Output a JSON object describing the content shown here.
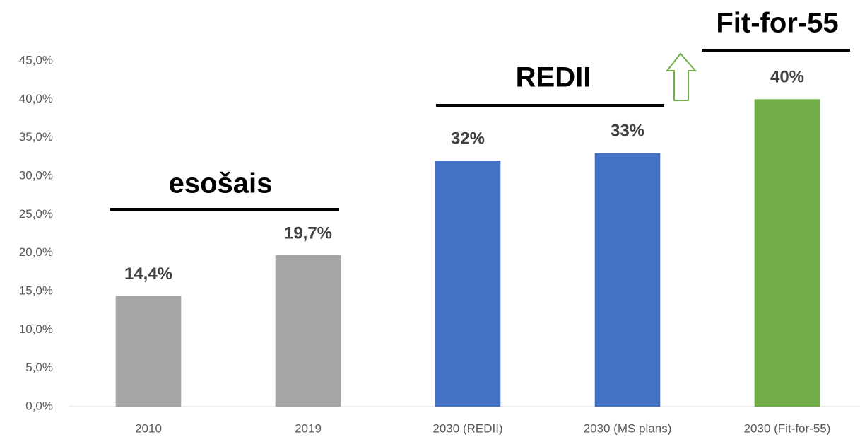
{
  "chart_data": {
    "type": "bar",
    "categories": [
      "2010",
      "2019",
      "2030 (REDII)",
      "2030 (MS plans)",
      "2030 (Fit-for-55)"
    ],
    "values": [
      14.4,
      19.7,
      32,
      33,
      40
    ],
    "value_labels": [
      "14,4%",
      "19,7%",
      "32%",
      "33%",
      "40%"
    ],
    "colors": [
      "#a5a5a5",
      "#a5a5a5",
      "#4472c4",
      "#4472c4",
      "#70ad47"
    ],
    "ylim": [
      0,
      45
    ],
    "yticks": [
      {
        "value": 0,
        "label": "0,0%"
      },
      {
        "value": 5,
        "label": "5,0%"
      },
      {
        "value": 10,
        "label": "10,0%"
      },
      {
        "value": 15,
        "label": "15,0%"
      },
      {
        "value": 20,
        "label": "20,0%"
      },
      {
        "value": 25,
        "label": "25,0%"
      },
      {
        "value": 30,
        "label": "30,0%"
      },
      {
        "value": 35,
        "label": "35,0%"
      },
      {
        "value": 40,
        "label": "40,0%"
      },
      {
        "value": 45,
        "label": "45,0%"
      }
    ],
    "grid": false,
    "annotations": [
      {
        "text": "esošais"
      },
      {
        "text": "REDII"
      },
      {
        "text": "Fit-for-55"
      }
    ]
  }
}
